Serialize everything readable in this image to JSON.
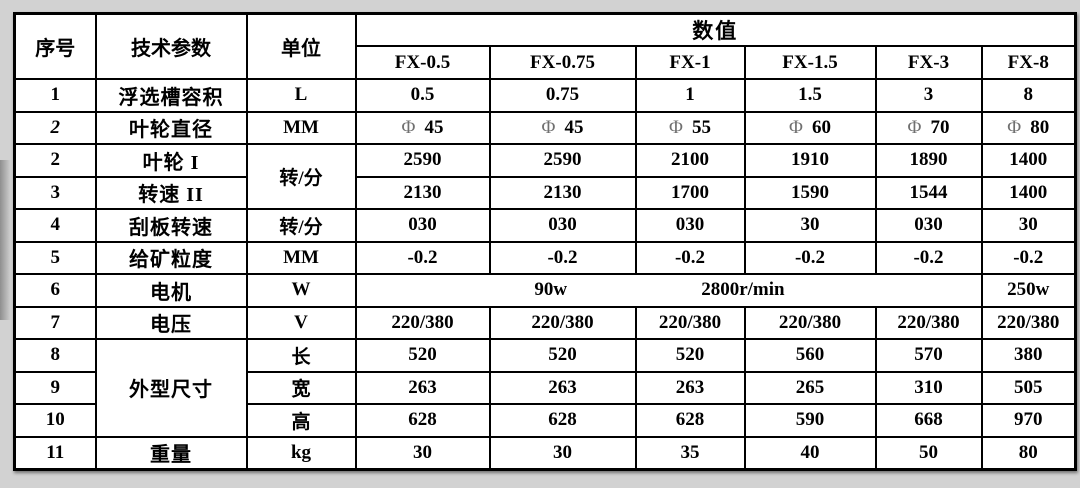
{
  "page": {
    "background": "#d2d2d2",
    "table_background": "#ffffff",
    "border_color": "#000000",
    "phi_color": "#707070"
  },
  "table": {
    "header": {
      "serial": "序号",
      "parameter": "技术参数",
      "unit": "单位",
      "values": "数值",
      "models": [
        "FX-0.5",
        "FX-0.75",
        "FX-1",
        "FX-1.5",
        "FX-3",
        "FX-8"
      ]
    },
    "phi_symbol": "Φ",
    "body": [
      {
        "serial": "1",
        "param": "浮选槽容积",
        "unit": "L",
        "values": [
          "0.5",
          "0.75",
          "1",
          "1.5",
          "3",
          "8"
        ]
      },
      {
        "serial": "2",
        "serial_italic": true,
        "param": "叶轮直径",
        "unit": "MM",
        "phi": true,
        "values": [
          "45",
          "45",
          "55",
          "60",
          "70",
          "80"
        ]
      },
      {
        "serial": "2",
        "param": "叶轮 I",
        "unit": "转/分",
        "unit_rowspan": 2,
        "values": [
          "2590",
          "2590",
          "2100",
          "1910",
          "1890",
          "1400"
        ]
      },
      {
        "serial": "3",
        "param": "转速 II",
        "unit": null,
        "values": [
          "2130",
          "2130",
          "1700",
          "1590",
          "1544",
          "1400"
        ]
      },
      {
        "serial": "4",
        "param": "刮板转速",
        "unit": "转/分",
        "values": [
          "030",
          "030",
          "030",
          "30",
          "030",
          "30"
        ]
      },
      {
        "serial": "5",
        "param": "给矿粒度",
        "unit": "MM",
        "values": [
          "-0.2",
          "-0.2",
          "-0.2",
          "-0.2",
          "-0.2",
          "-0.2"
        ]
      },
      {
        "serial": "6",
        "param": "电机",
        "unit": "W",
        "merged": {
          "colspan": 5,
          "parts": [
            "90w",
            "2800r/min"
          ]
        },
        "values_last": "250w"
      },
      {
        "serial": "7",
        "param": "电压",
        "unit": "V",
        "values": [
          "220/380",
          "220/380",
          "220/380",
          "220/380",
          "220/380",
          "220/380"
        ]
      },
      {
        "serial": "8",
        "param": "外型尺寸",
        "param_rowspan": 3,
        "unit": "长",
        "values": [
          "520",
          "520",
          "520",
          "560",
          "570",
          "380"
        ]
      },
      {
        "serial": "9",
        "unit": "宽",
        "values": [
          "263",
          "263",
          "263",
          "265",
          "310",
          "505"
        ]
      },
      {
        "serial": "10",
        "unit": "高",
        "values": [
          "628",
          "628",
          "628",
          "590",
          "668",
          "970"
        ]
      },
      {
        "serial": "11",
        "param": "重量",
        "unit": "kg",
        "values": [
          "30",
          "30",
          "35",
          "40",
          "50",
          "80"
        ]
      }
    ]
  }
}
